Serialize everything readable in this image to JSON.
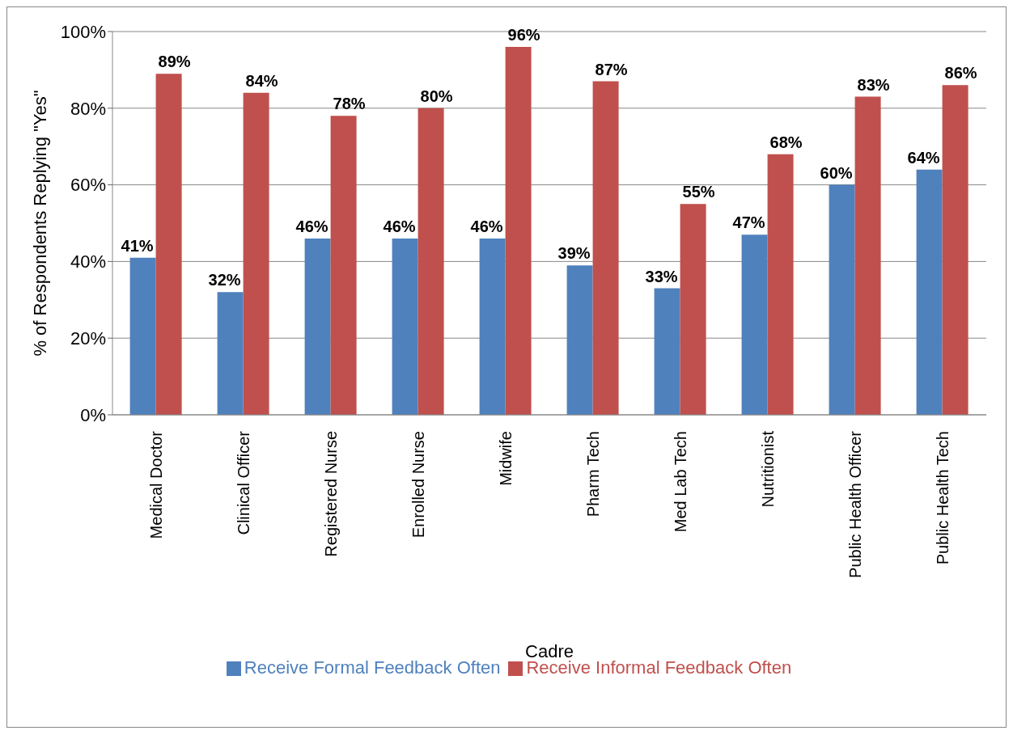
{
  "chart_data": {
    "type": "bar",
    "xlabel": "Cadre",
    "ylabel": "% of Respondents Replying \"Yes\"",
    "categories": [
      "Medical Doctor",
      "Clinical Officer",
      "Registered Nurse",
      "Enrolled Nurse",
      "Midwife",
      "Pharm Tech",
      "Med Lab Tech",
      "Nutritionist",
      "Public Health Officer",
      "Public Health Tech"
    ],
    "series": [
      {
        "name": "Receive Formal Feedback Often",
        "color": "#4f81bd",
        "values": [
          41,
          32,
          46,
          46,
          46,
          39,
          33,
          47,
          60,
          64
        ],
        "value_labels": [
          "41%",
          "32%",
          "46%",
          "46%",
          "46%",
          "39%",
          "33%",
          "47%",
          "60%",
          "64%"
        ]
      },
      {
        "name": "Receive Informal Feedback Often",
        "color": "#c0504d",
        "values": [
          89,
          84,
          78,
          80,
          96,
          87,
          55,
          68,
          83,
          86
        ],
        "value_labels": [
          "89%",
          "84%",
          "78%",
          "80%",
          "96%",
          "87%",
          "55%",
          "68%",
          "83%",
          "86%"
        ]
      }
    ],
    "ylim": [
      0,
      100
    ],
    "yticks": [
      {
        "value": 0,
        "label": "0%"
      },
      {
        "value": 20,
        "label": "20%"
      },
      {
        "value": 40,
        "label": "40%"
      },
      {
        "value": 60,
        "label": "60%"
      },
      {
        "value": 80,
        "label": "80%"
      },
      {
        "value": 100,
        "label": "100%"
      }
    ],
    "grid": "y",
    "legend": "bottom"
  }
}
